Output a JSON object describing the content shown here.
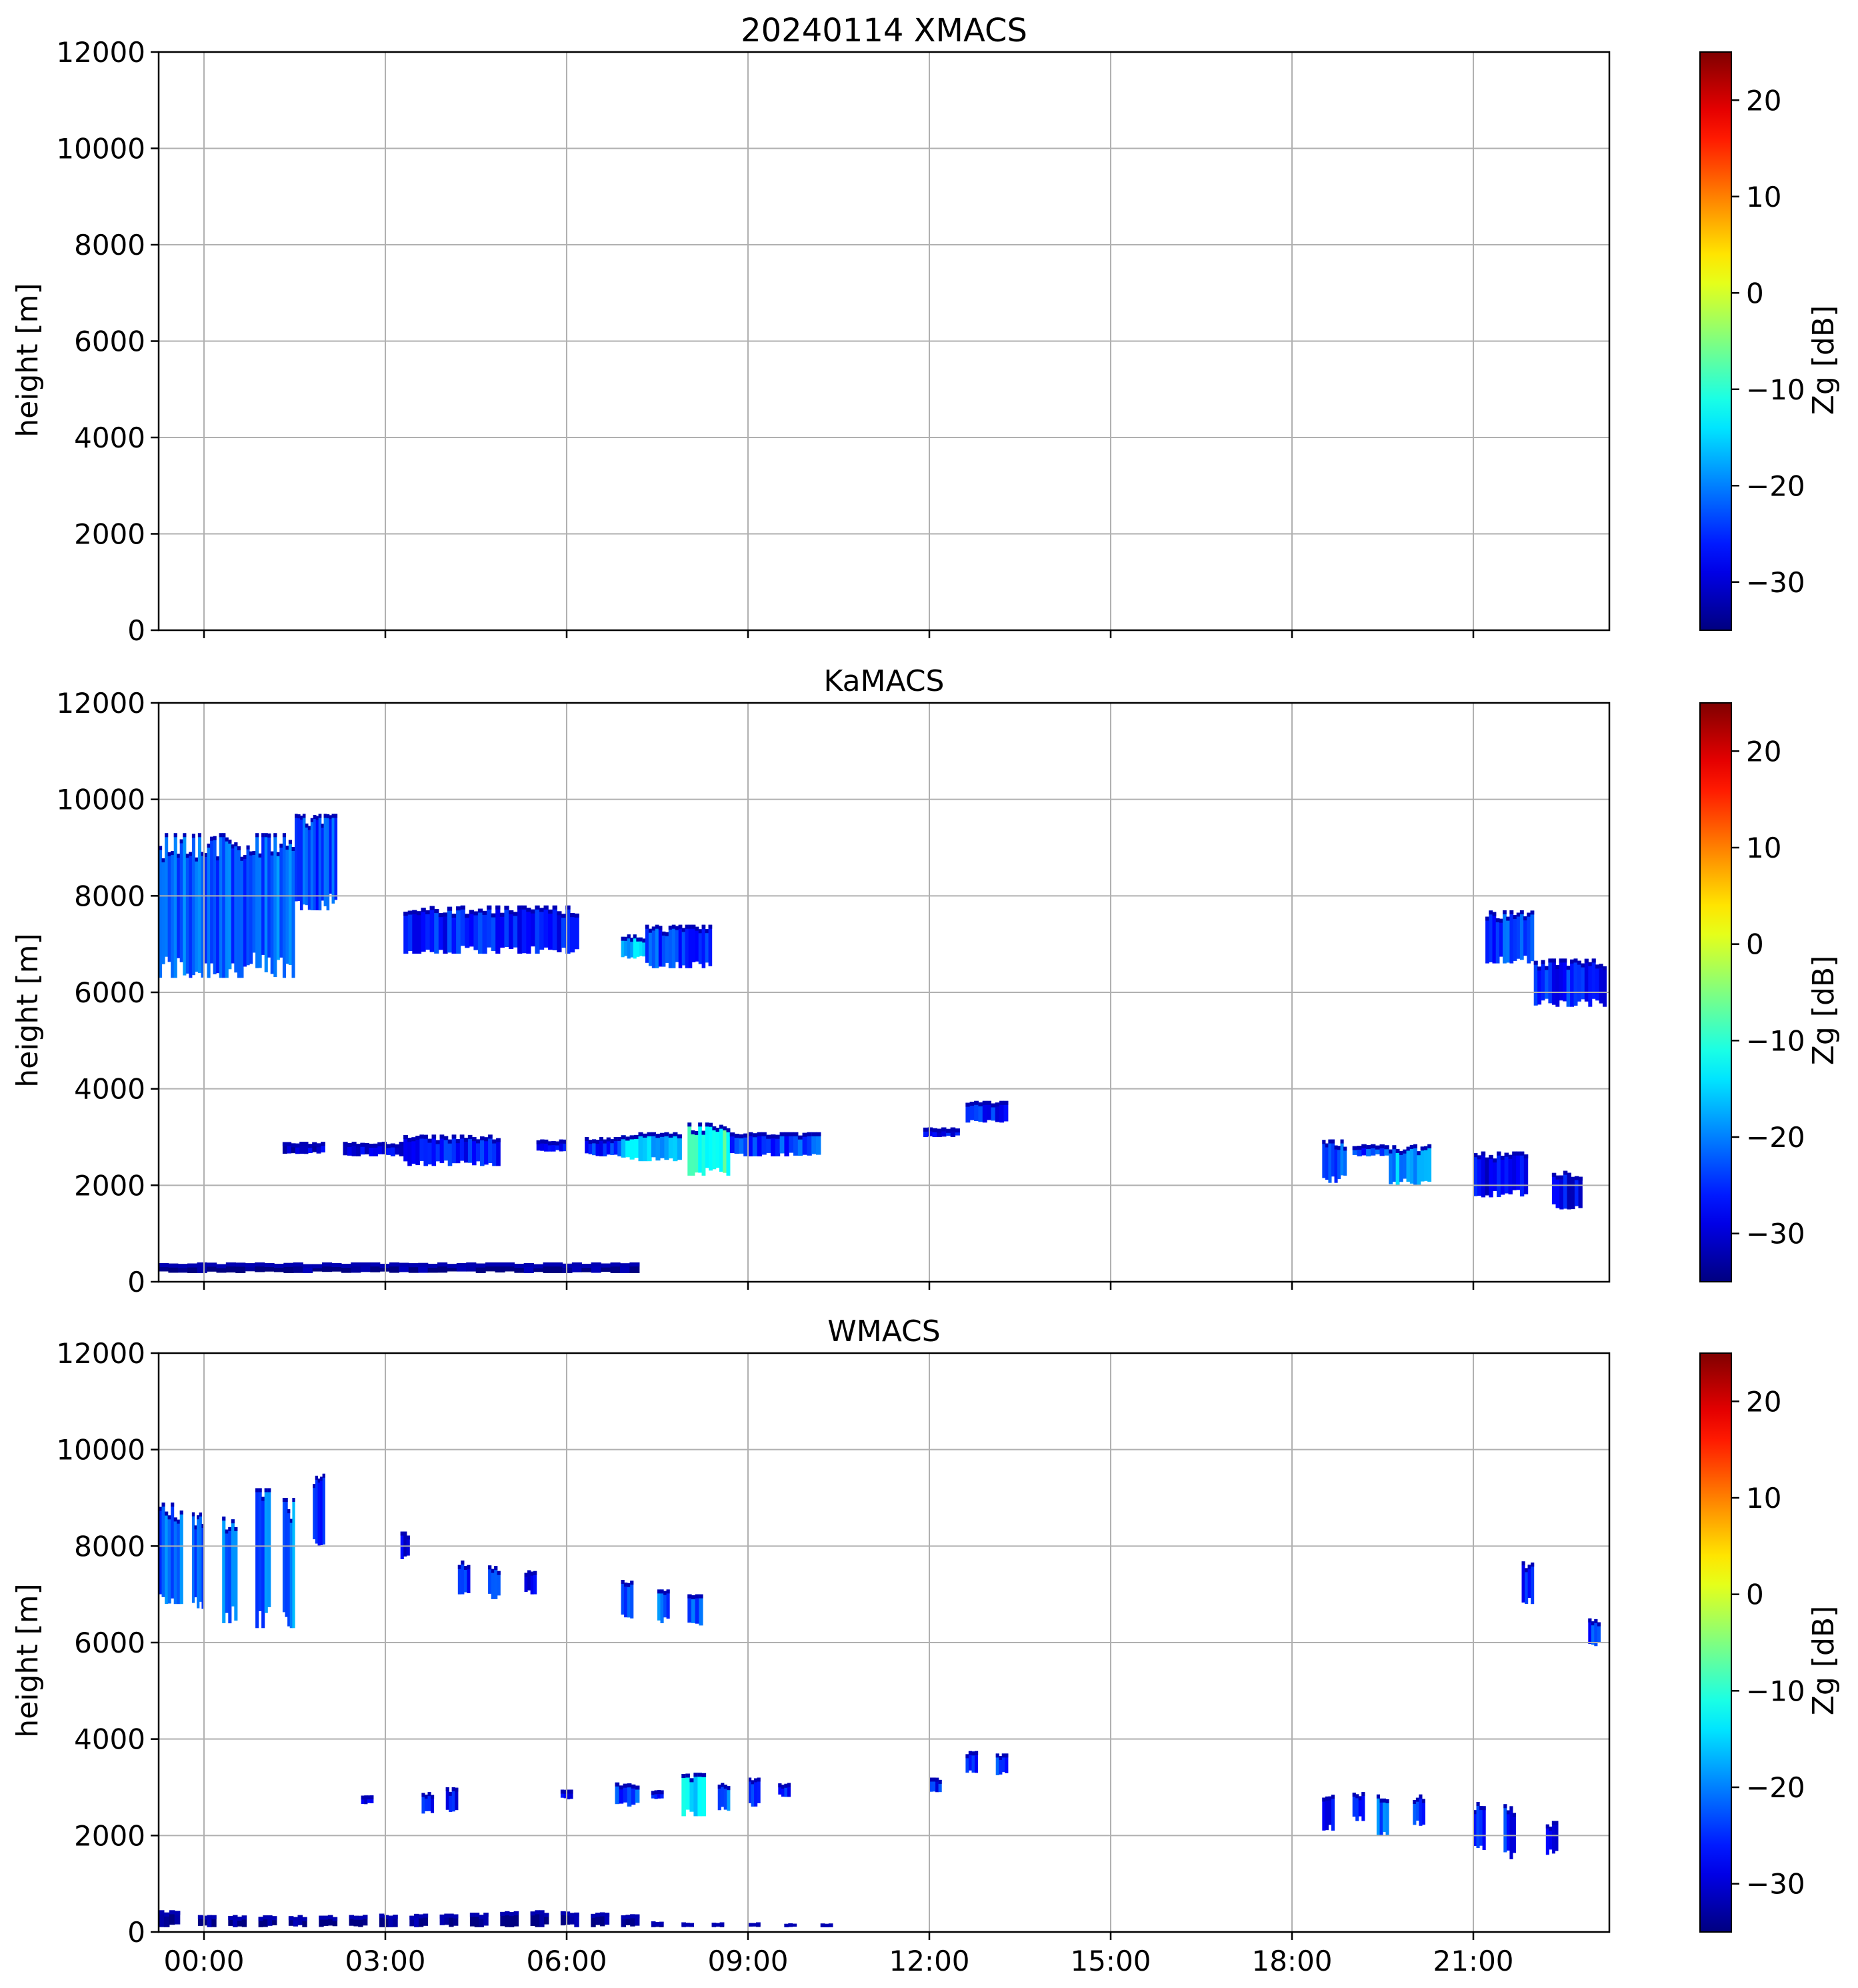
{
  "figure_title": "20240114 XMACS",
  "colors": {
    "grid": "#b0b0b0",
    "frame": "#000000",
    "background": "#ffffff"
  },
  "colorbar": {
    "label": "Zg [dB]",
    "range": [
      -35,
      25
    ],
    "ticks": [
      20,
      10,
      0,
      -10,
      -20,
      -30
    ],
    "tick_labels": [
      "20",
      "10",
      "0",
      "−10",
      "−20",
      "−30"
    ],
    "colormap": "jet"
  },
  "chart_data": [
    {
      "type": "heatmap",
      "title": "20240114 XMACS",
      "xlabel": "",
      "ylabel": "height [m]",
      "ylim": [
        0,
        12000
      ],
      "xlim_hours": [
        -0.75,
        23.25
      ],
      "yticks": [
        0,
        2000,
        4000,
        6000,
        8000,
        10000,
        12000
      ],
      "ytick_labels": [
        "0",
        "2000",
        "4000",
        "6000",
        "8000",
        "10000",
        "12000"
      ],
      "xticks_hours": [
        0,
        3,
        6,
        9,
        12,
        15,
        18,
        21
      ],
      "xtick_labels": [],
      "grid": true,
      "echoes": []
    },
    {
      "type": "heatmap",
      "title": "KaMACS",
      "xlabel": "",
      "ylabel": "height [m]",
      "ylim": [
        0,
        12000
      ],
      "xlim_hours": [
        -0.75,
        23.25
      ],
      "yticks": [
        0,
        2000,
        4000,
        6000,
        8000,
        10000,
        12000
      ],
      "ytick_labels": [
        "0",
        "2000",
        "4000",
        "6000",
        "8000",
        "10000",
        "12000"
      ],
      "xticks_hours": [
        0,
        3,
        6,
        9,
        12,
        15,
        18,
        21
      ],
      "xtick_labels": [],
      "grid": true,
      "echoes": [
        {
          "t0": -0.75,
          "t1": 1.5,
          "h0": 6300,
          "h1": 9300,
          "dbz": -22,
          "cols": 45
        },
        {
          "t0": 1.5,
          "t1": 2.2,
          "h0": 7700,
          "h1": 9700,
          "dbz": -24,
          "cols": 16
        },
        {
          "t0": 3.3,
          "t1": 6.2,
          "h0": 6800,
          "h1": 7800,
          "dbz": -26,
          "cols": 40
        },
        {
          "t0": 6.9,
          "t1": 7.3,
          "h0": 6700,
          "h1": 7200,
          "dbz": -17,
          "cols": 8
        },
        {
          "t0": 7.3,
          "t1": 8.4,
          "h0": 6500,
          "h1": 7400,
          "dbz": -24,
          "cols": 20
        },
        {
          "t0": 21.2,
          "t1": 22.0,
          "h0": 6600,
          "h1": 7700,
          "dbz": -24,
          "cols": 14
        },
        {
          "t0": 22.0,
          "t1": 23.2,
          "h0": 5700,
          "h1": 6700,
          "dbz": -26,
          "cols": 20
        },
        {
          "t0": 1.3,
          "t1": 2.0,
          "h0": 2650,
          "h1": 2900,
          "dbz": -30,
          "cols": 10
        },
        {
          "t0": 2.3,
          "t1": 3.3,
          "h0": 2600,
          "h1": 2900,
          "dbz": -29,
          "cols": 14
        },
        {
          "t0": 3.3,
          "t1": 4.9,
          "h0": 2400,
          "h1": 3050,
          "dbz": -27,
          "cols": 24
        },
        {
          "t0": 5.5,
          "t1": 6.0,
          "h0": 2700,
          "h1": 2950,
          "dbz": -28,
          "cols": 8
        },
        {
          "t0": 6.3,
          "t1": 6.9,
          "h0": 2600,
          "h1": 3000,
          "dbz": -26,
          "cols": 10
        },
        {
          "t0": 6.9,
          "t1": 7.9,
          "h0": 2500,
          "h1": 3100,
          "dbz": -16,
          "cols": 14
        },
        {
          "t0": 8.0,
          "t1": 8.7,
          "h0": 2200,
          "h1": 3300,
          "dbz": -9,
          "cols": 12
        },
        {
          "t0": 8.7,
          "t1": 10.2,
          "h0": 2600,
          "h1": 3100,
          "dbz": -24,
          "cols": 20
        },
        {
          "t0": 11.9,
          "t1": 12.5,
          "h0": 3000,
          "h1": 3200,
          "dbz": -28,
          "cols": 8
        },
        {
          "t0": 12.6,
          "t1": 13.3,
          "h0": 3300,
          "h1": 3750,
          "dbz": -26,
          "cols": 10
        },
        {
          "t0": 18.5,
          "t1": 18.9,
          "h0": 2050,
          "h1": 2950,
          "dbz": -22,
          "cols": 8
        },
        {
          "t0": 19.0,
          "t1": 19.6,
          "h0": 2600,
          "h1": 2850,
          "dbz": -24,
          "cols": 8
        },
        {
          "t0": 19.6,
          "t1": 20.3,
          "h0": 2000,
          "h1": 2850,
          "dbz": -18,
          "cols": 12
        },
        {
          "t0": 21.0,
          "t1": 21.9,
          "h0": 1750,
          "h1": 2700,
          "dbz": -28,
          "cols": 14
        },
        {
          "t0": 22.3,
          "t1": 22.8,
          "h0": 1500,
          "h1": 2300,
          "dbz": -28,
          "cols": 8
        },
        {
          "t0": -0.75,
          "t1": 7.2,
          "h0": 180,
          "h1": 400,
          "dbz": -35,
          "cols": 50
        }
      ]
    },
    {
      "type": "heatmap",
      "title": "WMACS",
      "xlabel": "",
      "ylabel": "height [m]",
      "ylim": [
        0,
        12000
      ],
      "xlim_hours": [
        -0.75,
        23.25
      ],
      "yticks": [
        0,
        2000,
        4000,
        6000,
        8000,
        10000,
        12000
      ],
      "ytick_labels": [
        "0",
        "2000",
        "4000",
        "6000",
        "8000",
        "10000",
        "12000"
      ],
      "xticks_hours": [
        0,
        3,
        6,
        9,
        12,
        15,
        18,
        21
      ],
      "xtick_labels": [
        "00:00",
        "03:00",
        "06:00",
        "09:00",
        "12:00",
        "15:00",
        "18:00",
        "21:00"
      ],
      "grid": true,
      "echoes": [
        {
          "t0": -0.75,
          "t1": -0.35,
          "h0": 6800,
          "h1": 8900,
          "dbz": -22,
          "cols": 8
        },
        {
          "t0": -0.2,
          "t1": 0.0,
          "h0": 6600,
          "h1": 8700,
          "dbz": -22,
          "cols": 5
        },
        {
          "t0": 0.3,
          "t1": 0.55,
          "h0": 6400,
          "h1": 8700,
          "dbz": -21,
          "cols": 5
        },
        {
          "t0": 0.85,
          "t1": 1.1,
          "h0": 6300,
          "h1": 9200,
          "dbz": -21,
          "cols": 5
        },
        {
          "t0": 1.3,
          "t1": 1.5,
          "h0": 6300,
          "h1": 9000,
          "dbz": -20,
          "cols": 5
        },
        {
          "t0": 1.8,
          "t1": 2.0,
          "h0": 8000,
          "h1": 9500,
          "dbz": -24,
          "cols": 5
        },
        {
          "t0": 3.25,
          "t1": 3.4,
          "h0": 7700,
          "h1": 8300,
          "dbz": -28,
          "cols": 3
        },
        {
          "t0": 4.2,
          "t1": 4.4,
          "h0": 7000,
          "h1": 7700,
          "dbz": -26,
          "cols": 4
        },
        {
          "t0": 4.7,
          "t1": 4.9,
          "h0": 6900,
          "h1": 7600,
          "dbz": -26,
          "cols": 4
        },
        {
          "t0": 5.3,
          "t1": 5.5,
          "h0": 7000,
          "h1": 7500,
          "dbz": -28,
          "cols": 4
        },
        {
          "t0": 6.9,
          "t1": 7.1,
          "h0": 6500,
          "h1": 7300,
          "dbz": -22,
          "cols": 4
        },
        {
          "t0": 7.5,
          "t1": 7.7,
          "h0": 6400,
          "h1": 7100,
          "dbz": -22,
          "cols": 4
        },
        {
          "t0": 8.0,
          "t1": 8.25,
          "h0": 6300,
          "h1": 7000,
          "dbz": -22,
          "cols": 4
        },
        {
          "t0": 21.8,
          "t1": 22.0,
          "h0": 6800,
          "h1": 7700,
          "dbz": -26,
          "cols": 4
        },
        {
          "t0": 22.9,
          "t1": 23.1,
          "h0": 5900,
          "h1": 6500,
          "dbz": -24,
          "cols": 4
        },
        {
          "t0": 2.6,
          "t1": 2.8,
          "h0": 2650,
          "h1": 2850,
          "dbz": -28,
          "cols": 4
        },
        {
          "t0": 3.6,
          "t1": 3.8,
          "h0": 2450,
          "h1": 2900,
          "dbz": -27,
          "cols": 4
        },
        {
          "t0": 4.0,
          "t1": 4.2,
          "h0": 2450,
          "h1": 3000,
          "dbz": -27,
          "cols": 4
        },
        {
          "t0": 5.9,
          "t1": 6.1,
          "h0": 2750,
          "h1": 2950,
          "dbz": -28,
          "cols": 4
        },
        {
          "t0": 6.8,
          "t1": 7.2,
          "h0": 2600,
          "h1": 3100,
          "dbz": -24,
          "cols": 6
        },
        {
          "t0": 7.4,
          "t1": 7.6,
          "h0": 2750,
          "h1": 2950,
          "dbz": -26,
          "cols": 4
        },
        {
          "t0": 7.9,
          "t1": 8.3,
          "h0": 2400,
          "h1": 3300,
          "dbz": -14,
          "cols": 6
        },
        {
          "t0": 8.5,
          "t1": 8.7,
          "h0": 2500,
          "h1": 3100,
          "dbz": -22,
          "cols": 4
        },
        {
          "t0": 9.0,
          "t1": 9.2,
          "h0": 2600,
          "h1": 3200,
          "dbz": -24,
          "cols": 4
        },
        {
          "t0": 9.5,
          "t1": 9.7,
          "h0": 2800,
          "h1": 3100,
          "dbz": -26,
          "cols": 4
        },
        {
          "t0": 12.0,
          "t1": 12.2,
          "h0": 2900,
          "h1": 3200,
          "dbz": -26,
          "cols": 4
        },
        {
          "t0": 12.6,
          "t1": 12.8,
          "h0": 3300,
          "h1": 3750,
          "dbz": -26,
          "cols": 4
        },
        {
          "t0": 13.1,
          "t1": 13.3,
          "h0": 3250,
          "h1": 3700,
          "dbz": -24,
          "cols": 4
        },
        {
          "t0": 18.5,
          "t1": 18.7,
          "h0": 2100,
          "h1": 2900,
          "dbz": -26,
          "cols": 4
        },
        {
          "t0": 19.0,
          "t1": 19.2,
          "h0": 2300,
          "h1": 2900,
          "dbz": -24,
          "cols": 4
        },
        {
          "t0": 19.4,
          "t1": 19.6,
          "h0": 2000,
          "h1": 2850,
          "dbz": -22,
          "cols": 4
        },
        {
          "t0": 20.0,
          "t1": 20.2,
          "h0": 2200,
          "h1": 2850,
          "dbz": -24,
          "cols": 4
        },
        {
          "t0": 21.0,
          "t1": 21.2,
          "h0": 1700,
          "h1": 2700,
          "dbz": -26,
          "cols": 4
        },
        {
          "t0": 21.5,
          "t1": 21.7,
          "h0": 1500,
          "h1": 2650,
          "dbz": -26,
          "cols": 4
        },
        {
          "t0": 22.2,
          "t1": 22.4,
          "h0": 1600,
          "h1": 2300,
          "dbz": -28,
          "cols": 4
        },
        {
          "t0": -0.75,
          "t1": -0.4,
          "h0": 100,
          "h1": 450,
          "dbz": -35,
          "cols": 4
        },
        {
          "t0": -0.1,
          "t1": 0.2,
          "h0": 100,
          "h1": 350,
          "dbz": -35,
          "cols": 4
        },
        {
          "t0": 0.4,
          "t1": 0.7,
          "h0": 100,
          "h1": 350,
          "dbz": -35,
          "cols": 4
        },
        {
          "t0": 0.9,
          "t1": 1.2,
          "h0": 100,
          "h1": 350,
          "dbz": -35,
          "cols": 4
        },
        {
          "t0": 1.4,
          "t1": 1.7,
          "h0": 100,
          "h1": 350,
          "dbz": -35,
          "cols": 4
        },
        {
          "t0": 1.9,
          "t1": 2.2,
          "h0": 100,
          "h1": 350,
          "dbz": -35,
          "cols": 4
        },
        {
          "t0": 2.4,
          "t1": 2.7,
          "h0": 100,
          "h1": 380,
          "dbz": -35,
          "cols": 4
        },
        {
          "t0": 2.9,
          "t1": 3.2,
          "h0": 100,
          "h1": 380,
          "dbz": -35,
          "cols": 4
        },
        {
          "t0": 3.4,
          "t1": 3.7,
          "h0": 100,
          "h1": 380,
          "dbz": -35,
          "cols": 4
        },
        {
          "t0": 3.9,
          "t1": 4.2,
          "h0": 100,
          "h1": 380,
          "dbz": -35,
          "cols": 4
        },
        {
          "t0": 4.4,
          "t1": 4.7,
          "h0": 100,
          "h1": 400,
          "dbz": -35,
          "cols": 4
        },
        {
          "t0": 4.9,
          "t1": 5.2,
          "h0": 100,
          "h1": 430,
          "dbz": -35,
          "cols": 4
        },
        {
          "t0": 5.4,
          "t1": 5.7,
          "h0": 100,
          "h1": 450,
          "dbz": -35,
          "cols": 4
        },
        {
          "t0": 5.9,
          "t1": 6.2,
          "h0": 100,
          "h1": 430,
          "dbz": -35,
          "cols": 4
        },
        {
          "t0": 6.4,
          "t1": 6.7,
          "h0": 100,
          "h1": 420,
          "dbz": -35,
          "cols": 4
        },
        {
          "t0": 6.9,
          "t1": 7.2,
          "h0": 100,
          "h1": 380,
          "dbz": -35,
          "cols": 4
        },
        {
          "t0": 7.4,
          "t1": 7.6,
          "h0": 100,
          "h1": 220,
          "dbz": -35,
          "cols": 3
        },
        {
          "t0": 7.9,
          "t1": 8.1,
          "h0": 100,
          "h1": 200,
          "dbz": -35,
          "cols": 3
        },
        {
          "t0": 8.4,
          "t1": 8.6,
          "h0": 100,
          "h1": 200,
          "dbz": -35,
          "cols": 3
        },
        {
          "t0": 9.0,
          "t1": 9.2,
          "h0": 100,
          "h1": 200,
          "dbz": -35,
          "cols": 3
        },
        {
          "t0": 9.6,
          "t1": 9.8,
          "h0": 100,
          "h1": 180,
          "dbz": -35,
          "cols": 3
        },
        {
          "t0": 10.2,
          "t1": 10.4,
          "h0": 100,
          "h1": 180,
          "dbz": -35,
          "cols": 3
        }
      ]
    }
  ]
}
